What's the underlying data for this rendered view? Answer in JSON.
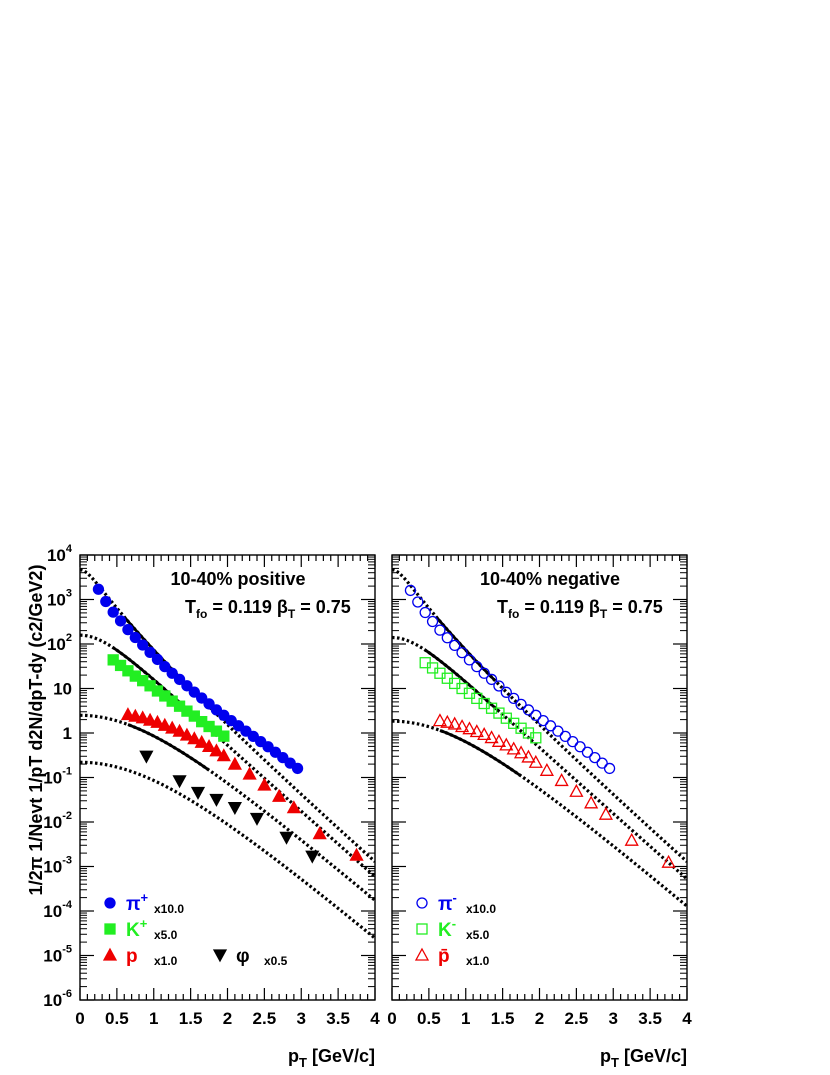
{
  "chart_data": {
    "type": "scatter",
    "shared": {
      "xlabel": "pT [GeV/c]",
      "ylabel": "1/2π 1/Nevt 1/pT d2N/dpT-dy (c2/GeV2)",
      "xlim": [
        0,
        4
      ],
      "ylim_log10": [
        -6,
        4
      ],
      "x_tick_labels": [
        "0",
        "0.5",
        "1",
        "1.5",
        "2",
        "2.5",
        "3",
        "3.5",
        "4"
      ],
      "y_tick_labels": [
        "10^-6",
        "10^-5",
        "10^-4",
        "10^-3",
        "10^-2",
        "10^-1",
        "1",
        "10",
        "10^2",
        "10^3",
        "10^4"
      ],
      "fit": {
        "temperature_label": "T",
        "temperature_sub": "fo",
        "temperature_value": "= 0.119",
        "beta_label": "β",
        "beta_sub": "T",
        "beta_value": "= 0.75"
      }
    },
    "panels": [
      {
        "title": "10-40%  positive",
        "series": [
          {
            "name": "π",
            "sup": "+",
            "scale": "x10.0",
            "color": "#0000ee",
            "marker": "circle-filled",
            "x": [
              0.25,
              0.35,
              0.45,
              0.55,
              0.65,
              0.75,
              0.85,
              0.95,
              1.05,
              1.15,
              1.25,
              1.35,
              1.45,
              1.55,
              1.65,
              1.75,
              1.85,
              1.95,
              2.05,
              2.15,
              2.25,
              2.35,
              2.45,
              2.55,
              2.65,
              2.75,
              2.85,
              2.95
            ],
            "y": [
              1700,
              900,
              520,
              330,
              210,
              140,
              95,
              65,
              45,
              31,
              22,
              16,
              11.5,
              8.3,
              6.1,
              4.5,
              3.3,
              2.5,
              1.9,
              1.45,
              1.1,
              0.84,
              0.64,
              0.49,
              0.37,
              0.28,
              0.21,
              0.16
            ],
            "fit_line": {
              "xmin": 0.6,
              "xmax": 1.4
            },
            "dotted_curve": {
              "A": 4700,
              "m": 0.14
            }
          },
          {
            "name": "K",
            "sup": "+",
            "scale": "x5.0",
            "color": "#22ee22",
            "marker": "square-filled",
            "x": [
              0.45,
              0.55,
              0.65,
              0.75,
              0.85,
              0.95,
              1.05,
              1.15,
              1.25,
              1.35,
              1.45,
              1.55,
              1.65,
              1.75,
              1.85,
              1.95
            ],
            "y": [
              44,
              33,
              25,
              19,
              15,
              11.5,
              8.8,
              6.8,
              5.2,
              4.0,
              3.1,
              2.4,
              1.8,
              1.4,
              1.1,
              0.85
            ],
            "fit_line": {
              "xmin": 0.45,
              "xmax": 1.45
            },
            "dotted_curve": {
              "A": 158,
              "m": 0.494
            }
          },
          {
            "name": "p",
            "sup": "",
            "scale": "x1.0",
            "color": "#ee0000",
            "marker": "triangle-up-filled",
            "x": [
              0.65,
              0.75,
              0.85,
              0.95,
              1.05,
              1.15,
              1.25,
              1.35,
              1.45,
              1.55,
              1.65,
              1.75,
              1.85,
              1.95,
              2.1,
              2.3,
              2.5,
              2.7,
              2.9,
              3.25,
              3.75
            ],
            "y": [
              2.6,
              2.4,
              2.2,
              1.95,
              1.75,
              1.5,
              1.3,
              1.1,
              0.9,
              0.75,
              0.62,
              0.5,
              0.4,
              0.31,
              0.2,
              0.12,
              0.068,
              0.038,
              0.021,
              0.0055,
              0.0018
            ],
            "fit_line": {
              "xmin": 0.65,
              "xmax": 1.75
            },
            "dotted_curve": {
              "A": 2.5,
              "m": 0.938
            }
          },
          {
            "name": "φ",
            "sup": "",
            "scale": "x0.5",
            "color": "#000000",
            "marker": "triangle-down-filled",
            "x": [
              0.9,
              1.35,
              1.6,
              1.85,
              2.1,
              2.4,
              2.8,
              3.15
            ],
            "y": [
              0.3,
              0.084,
              0.046,
              0.032,
              0.021,
              0.012,
              0.0045,
              0.0017
            ],
            "fit_line": null,
            "dotted_curve": {
              "A": 0.22,
              "m": 1.019
            }
          }
        ]
      },
      {
        "title": "10-40%  negative",
        "series": [
          {
            "name": "π",
            "sup": "-",
            "scale": "x10.0",
            "color": "#0000ee",
            "marker": "circle-open",
            "x": [
              0.25,
              0.35,
              0.45,
              0.55,
              0.65,
              0.75,
              0.85,
              0.95,
              1.05,
              1.15,
              1.25,
              1.35,
              1.45,
              1.55,
              1.65,
              1.75,
              1.85,
              1.95,
              2.05,
              2.15,
              2.25,
              2.35,
              2.45,
              2.55,
              2.65,
              2.75,
              2.85,
              2.95
            ],
            "y": [
              1600,
              880,
              510,
              320,
              205,
              138,
              93,
              64,
              44,
              31,
              22,
              16,
              11.4,
              8.2,
              6.0,
              4.4,
              3.3,
              2.5,
              1.9,
              1.45,
              1.1,
              0.84,
              0.64,
              0.49,
              0.37,
              0.28,
              0.21,
              0.16
            ],
            "fit_line": {
              "xmin": 0.6,
              "xmax": 1.4
            },
            "dotted_curve": {
              "A": 4700,
              "m": 0.14
            }
          },
          {
            "name": "K",
            "sup": "-",
            "scale": "x5.0",
            "color": "#22ee22",
            "marker": "square-open",
            "x": [
              0.45,
              0.55,
              0.65,
              0.75,
              0.85,
              0.95,
              1.05,
              1.15,
              1.25,
              1.35,
              1.45,
              1.55,
              1.65,
              1.75,
              1.85,
              1.95
            ],
            "y": [
              38,
              29,
              22,
              17,
              13,
              10,
              7.8,
              6.0,
              4.6,
              3.6,
              2.8,
              2.15,
              1.65,
              1.28,
              1.0,
              0.78
            ],
            "fit_line": {
              "xmin": 0.45,
              "xmax": 1.45
            },
            "dotted_curve": {
              "A": 140,
              "m": 0.494
            }
          },
          {
            "name": "p̄",
            "sup": "",
            "scale": "x1.0",
            "color": "#ee0000",
            "marker": "triangle-up-open",
            "x": [
              0.65,
              0.75,
              0.85,
              0.95,
              1.05,
              1.15,
              1.25,
              1.35,
              1.45,
              1.55,
              1.65,
              1.75,
              1.85,
              1.95,
              2.1,
              2.3,
              2.5,
              2.7,
              2.9,
              3.25,
              3.75
            ],
            "y": [
              1.9,
              1.75,
              1.6,
              1.4,
              1.25,
              1.08,
              0.93,
              0.79,
              0.65,
              0.54,
              0.44,
              0.36,
              0.29,
              0.22,
              0.145,
              0.086,
              0.049,
              0.027,
              0.015,
              0.0039,
              0.00125
            ],
            "fit_line": {
              "xmin": 0.65,
              "xmax": 1.75
            },
            "dotted_curve": {
              "A": 1.85,
              "m": 0.938
            }
          }
        ]
      }
    ]
  }
}
